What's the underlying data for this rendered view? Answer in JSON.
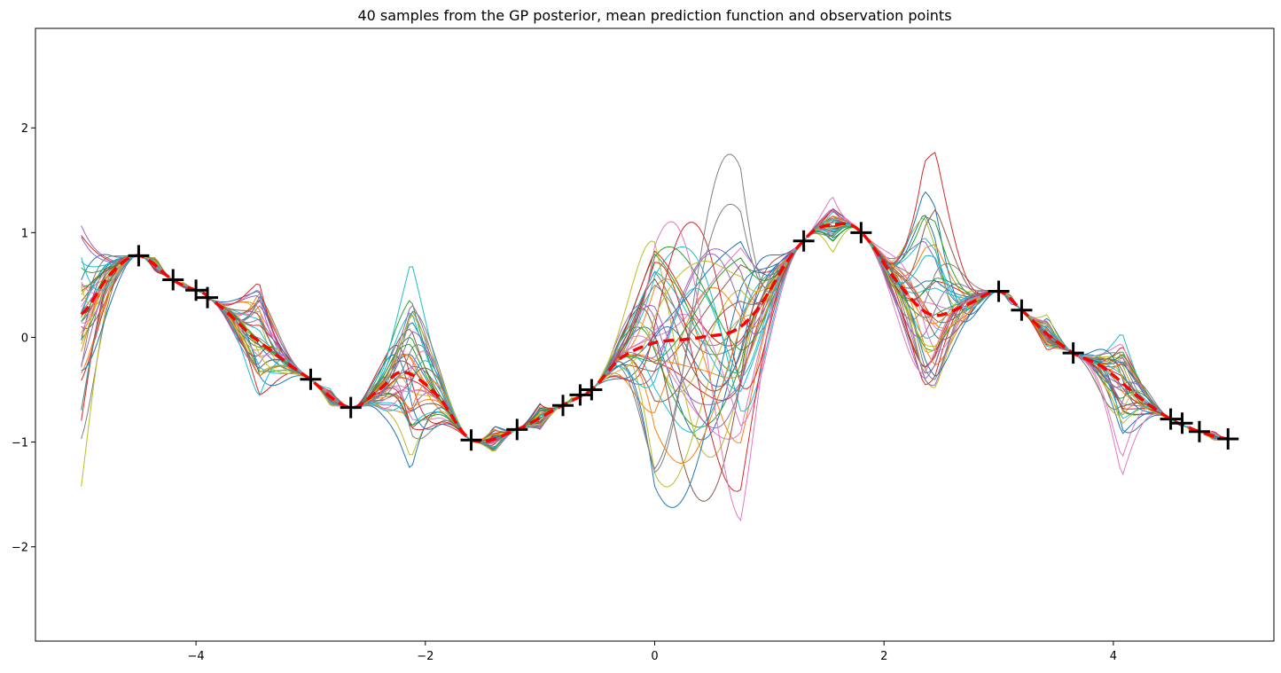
{
  "chart_data": {
    "type": "line",
    "title": "40 samples from the GP posterior, mean prediction function and observation points",
    "xlabel": "",
    "ylabel": "",
    "xlim": [
      -5.4,
      5.4
    ],
    "ylim": [
      -2.9,
      2.95
    ],
    "x_ticks": [
      -4,
      -2,
      0,
      2,
      4
    ],
    "y_ticks": [
      -2,
      -1,
      0,
      1,
      2
    ],
    "x_tick_labels": [
      "−4",
      "−2",
      "0",
      "2",
      "4"
    ],
    "y_tick_labels": [
      "−2",
      "−1",
      "0",
      "1",
      "2"
    ],
    "grid": false,
    "legend": "none",
    "n_samples": 40,
    "sample_palette": [
      "#1f77b4",
      "#ff7f0e",
      "#2ca02c",
      "#d62728",
      "#9467bd",
      "#8c564b",
      "#e377c2",
      "#7f7f7f",
      "#bcbd22",
      "#17becf"
    ],
    "mean_color": "#ff0000",
    "observation_color": "#000000",
    "observations": {
      "x": [
        -4.5,
        -4.2,
        -4.0,
        -3.9,
        -3.0,
        -2.65,
        -1.6,
        -1.2,
        -0.8,
        -0.65,
        -0.55,
        1.3,
        1.8,
        3.0,
        3.2,
        3.65,
        4.5,
        4.6,
        4.75,
        5.0
      ],
      "y": [
        0.78,
        0.55,
        0.45,
        0.38,
        -0.4,
        -0.67,
        -0.98,
        -0.88,
        -0.65,
        -0.55,
        -0.5,
        0.92,
        1.0,
        0.44,
        0.26,
        -0.15,
        -0.78,
        -0.82,
        -0.9,
        -0.97
      ]
    },
    "mean": {
      "x": [
        -5.0,
        -4.75,
        -4.5,
        -4.2,
        -4.0,
        -3.9,
        -3.5,
        -3.0,
        -2.65,
        -2.4,
        -2.2,
        -1.9,
        -1.6,
        -1.2,
        -0.8,
        -0.55,
        -0.3,
        0.0,
        0.4,
        0.8,
        1.3,
        1.6,
        1.8,
        2.1,
        2.4,
        2.7,
        3.0,
        3.2,
        3.4,
        3.65,
        3.9,
        4.2,
        4.5,
        4.75,
        5.0
      ],
      "y": [
        0.22,
        0.6,
        0.78,
        0.55,
        0.45,
        0.38,
        0.0,
        -0.4,
        -0.67,
        -0.5,
        -0.33,
        -0.55,
        -0.98,
        -0.88,
        -0.65,
        -0.5,
        -0.2,
        -0.05,
        0.0,
        0.15,
        0.92,
        1.08,
        1.0,
        0.55,
        0.22,
        0.3,
        0.44,
        0.26,
        0.05,
        -0.15,
        -0.28,
        -0.55,
        -0.78,
        -0.9,
        -0.97
      ]
    }
  }
}
